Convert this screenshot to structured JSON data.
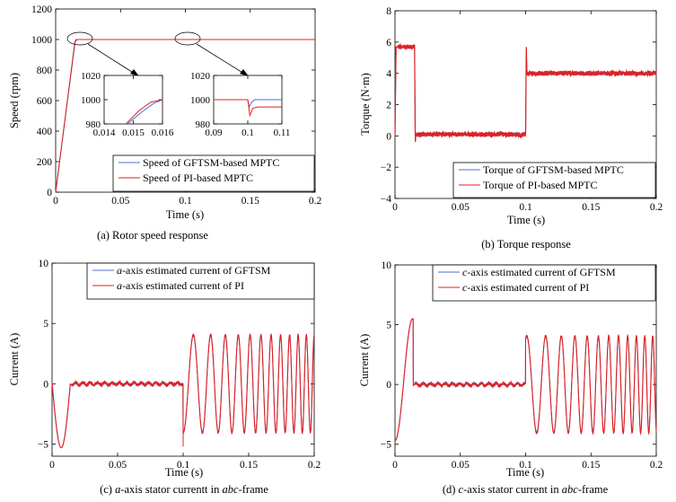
{
  "colors": {
    "gftsm": "#4f6fd0",
    "pi": "#e02020",
    "frame": "#000000"
  },
  "chart_data": [
    {
      "id": "a",
      "type": "line",
      "caption": "(a) Rotor speed response",
      "xlabel": "Time (s)",
      "ylabel": "Speed (rpm)",
      "xlim": [
        0,
        0.2
      ],
      "ylim": [
        0,
        1200
      ],
      "xticks": [
        0,
        0.05,
        0.1,
        0.15,
        0.2
      ],
      "xtick_labels": [
        "0",
        "0.05",
        "0.1",
        "0.15",
        "0.2"
      ],
      "yticks": [
        0,
        200,
        400,
        600,
        800,
        1000,
        1200
      ],
      "ytick_labels": [
        "0",
        "200",
        "400",
        "600",
        "800",
        "1000",
        "1200"
      ],
      "legend": {
        "placement": "bottom-right",
        "entries": [
          "Speed of GFTSM-based MPTC",
          "Speed of PI-based MPTC"
        ]
      },
      "series": [
        {
          "name": "Speed of GFTSM-based MPTC",
          "color": "gftsm",
          "x": [
            0,
            0.015,
            0.0165,
            0.2
          ],
          "y": [
            0,
            985,
            1000,
            1000
          ]
        },
        {
          "name": "Speed of PI-based MPTC",
          "color": "pi",
          "x": [
            0,
            0.0148,
            0.0158,
            0.2
          ],
          "y": [
            0,
            985,
            1000,
            1000
          ]
        }
      ],
      "insets": [
        {
          "xlim": [
            0.014,
            0.016
          ],
          "ylim": [
            980,
            1020
          ],
          "xticks": [
            0.014,
            0.015,
            0.016
          ],
          "xtick_labels": [
            "0.014",
            "0.015",
            "0.016"
          ],
          "yticks": [
            980,
            1000,
            1020
          ],
          "ytick_labels": [
            "980",
            "1000",
            "1020"
          ],
          "series": [
            {
              "color": "gftsm",
              "x": [
                0.0148,
                0.0153,
                0.0157,
                0.0161,
                0.0166,
                0.016
              ],
              "y": [
                980,
                990,
                997,
                1000,
                1000,
                1000
              ]
            },
            {
              "color": "pi",
              "x": [
                0.01475,
                0.0152,
                0.0156,
                0.016,
                0.0162,
                0.016
              ],
              "y": [
                980,
                991,
                998,
                1000,
                1000,
                1000
              ]
            }
          ]
        },
        {
          "xlim": [
            0.09,
            0.11
          ],
          "ylim": [
            980,
            1020
          ],
          "xticks": [
            0.09,
            0.1,
            0.11
          ],
          "xtick_labels": [
            "0.09",
            "0.1",
            "0.11"
          ],
          "yticks": [
            980,
            1000,
            1020
          ],
          "ytick_labels": [
            "980",
            "1000",
            "1020"
          ],
          "series": [
            {
              "color": "gftsm",
              "x": [
                0.09,
                0.1,
                0.1004,
                0.1012,
                0.102,
                0.11
              ],
              "y": [
                1000,
                1000,
                994,
                998,
                1000,
                1000
              ]
            },
            {
              "color": "pi",
              "x": [
                0.09,
                0.1,
                0.1006,
                0.1015,
                0.103,
                0.11
              ],
              "y": [
                1000,
                1000,
                987,
                993,
                994,
                994
              ]
            }
          ]
        }
      ]
    },
    {
      "id": "b",
      "type": "line",
      "caption": "(b) Torque response",
      "xlabel": "Time (s)",
      "ylabel": "Torque (N·m)",
      "xlim": [
        0,
        0.2
      ],
      "ylim": [
        -4,
        8
      ],
      "xticks": [
        0,
        0.05,
        0.1,
        0.15,
        0.2
      ],
      "xtick_labels": [
        "0",
        "0.05",
        "0.1",
        "0.15",
        "0.2"
      ],
      "yticks": [
        -4,
        -2,
        0,
        2,
        4,
        6,
        8
      ],
      "ytick_labels": [
        "−4",
        "−2",
        "0",
        "2",
        "4",
        "6",
        "8"
      ],
      "legend": {
        "placement": "bottom-right",
        "entries": [
          "Torque of GFTSM-based MPTC",
          "Torque of PI-based MPTC"
        ]
      },
      "series": [
        {
          "name": "Torque of GFTSM-based MPTC",
          "color": "gftsm",
          "x": [
            0,
            0.0008,
            0.015,
            0.0155,
            0.016,
            0.1,
            0.1005,
            0.101,
            0.2
          ],
          "y": [
            0,
            5.7,
            5.7,
            -0.4,
            0.1,
            0.1,
            5.6,
            4.0,
            4.0
          ]
        },
        {
          "name": "Torque of PI-based MPTC",
          "color": "pi",
          "x": [
            0,
            0.0008,
            0.015,
            0.0155,
            0.016,
            0.1,
            0.1005,
            0.101,
            0.2
          ],
          "y": [
            0,
            5.7,
            5.7,
            -0.4,
            0.1,
            0.1,
            5.8,
            4.0,
            4.0
          ]
        }
      ]
    },
    {
      "id": "c",
      "type": "line",
      "caption_parts": [
        "(c) ",
        "a",
        "-axis stator currentt in ",
        "abc",
        "-frame"
      ],
      "xlabel": "Time (s)",
      "ylabel": "Current (A)",
      "xlim": [
        0,
        0.2
      ],
      "ylim": [
        -6,
        10
      ],
      "xticks": [
        0,
        0.05,
        0.1,
        0.15,
        0.2
      ],
      "xtick_labels": [
        "0",
        "0.05",
        "0.1",
        "0.15",
        "0.2"
      ],
      "yticks": [
        -5,
        0,
        5,
        10
      ],
      "ytick_labels": [
        "−5",
        "0",
        "5",
        "10"
      ],
      "legend": {
        "placement": "top-right",
        "entries": [
          [
            "a",
            "-axis estimated current of GFTSM"
          ],
          [
            "a",
            "-axis estimated current of PI"
          ]
        ]
      },
      "phase_deg": 0,
      "series": [
        {
          "name": "a-axis estimated current of GFTSM",
          "color": "gftsm"
        },
        {
          "name": "a-axis estimated current of PI",
          "color": "pi"
        }
      ]
    },
    {
      "id": "d",
      "type": "line",
      "caption_parts": [
        "(d) ",
        "c",
        "-axis stator current in ",
        "abc",
        "-frame"
      ],
      "xlabel": "Time (s)",
      "ylabel": "Current (A)",
      "xlim": [
        0,
        0.2
      ],
      "ylim": [
        -6,
        10
      ],
      "xticks": [
        0,
        0.05,
        0.1,
        0.15,
        0.2
      ],
      "xtick_labels": [
        "0",
        "0.05",
        "0.1",
        "0.15",
        "0.2"
      ],
      "yticks": [
        -5,
        0,
        5,
        10
      ],
      "ytick_labels": [
        "−5",
        "0",
        "5",
        "10"
      ],
      "legend": {
        "placement": "top-right",
        "entries": [
          [
            "c",
            "-axis estimated current of GFTSM"
          ],
          [
            "c",
            "-axis estimated current of PI"
          ]
        ]
      },
      "phase_deg": 120,
      "series": [
        {
          "name": "c-axis estimated current of GFTSM",
          "color": "gftsm"
        },
        {
          "name": "c-axis estimated current of PI",
          "color": "pi"
        }
      ]
    }
  ]
}
